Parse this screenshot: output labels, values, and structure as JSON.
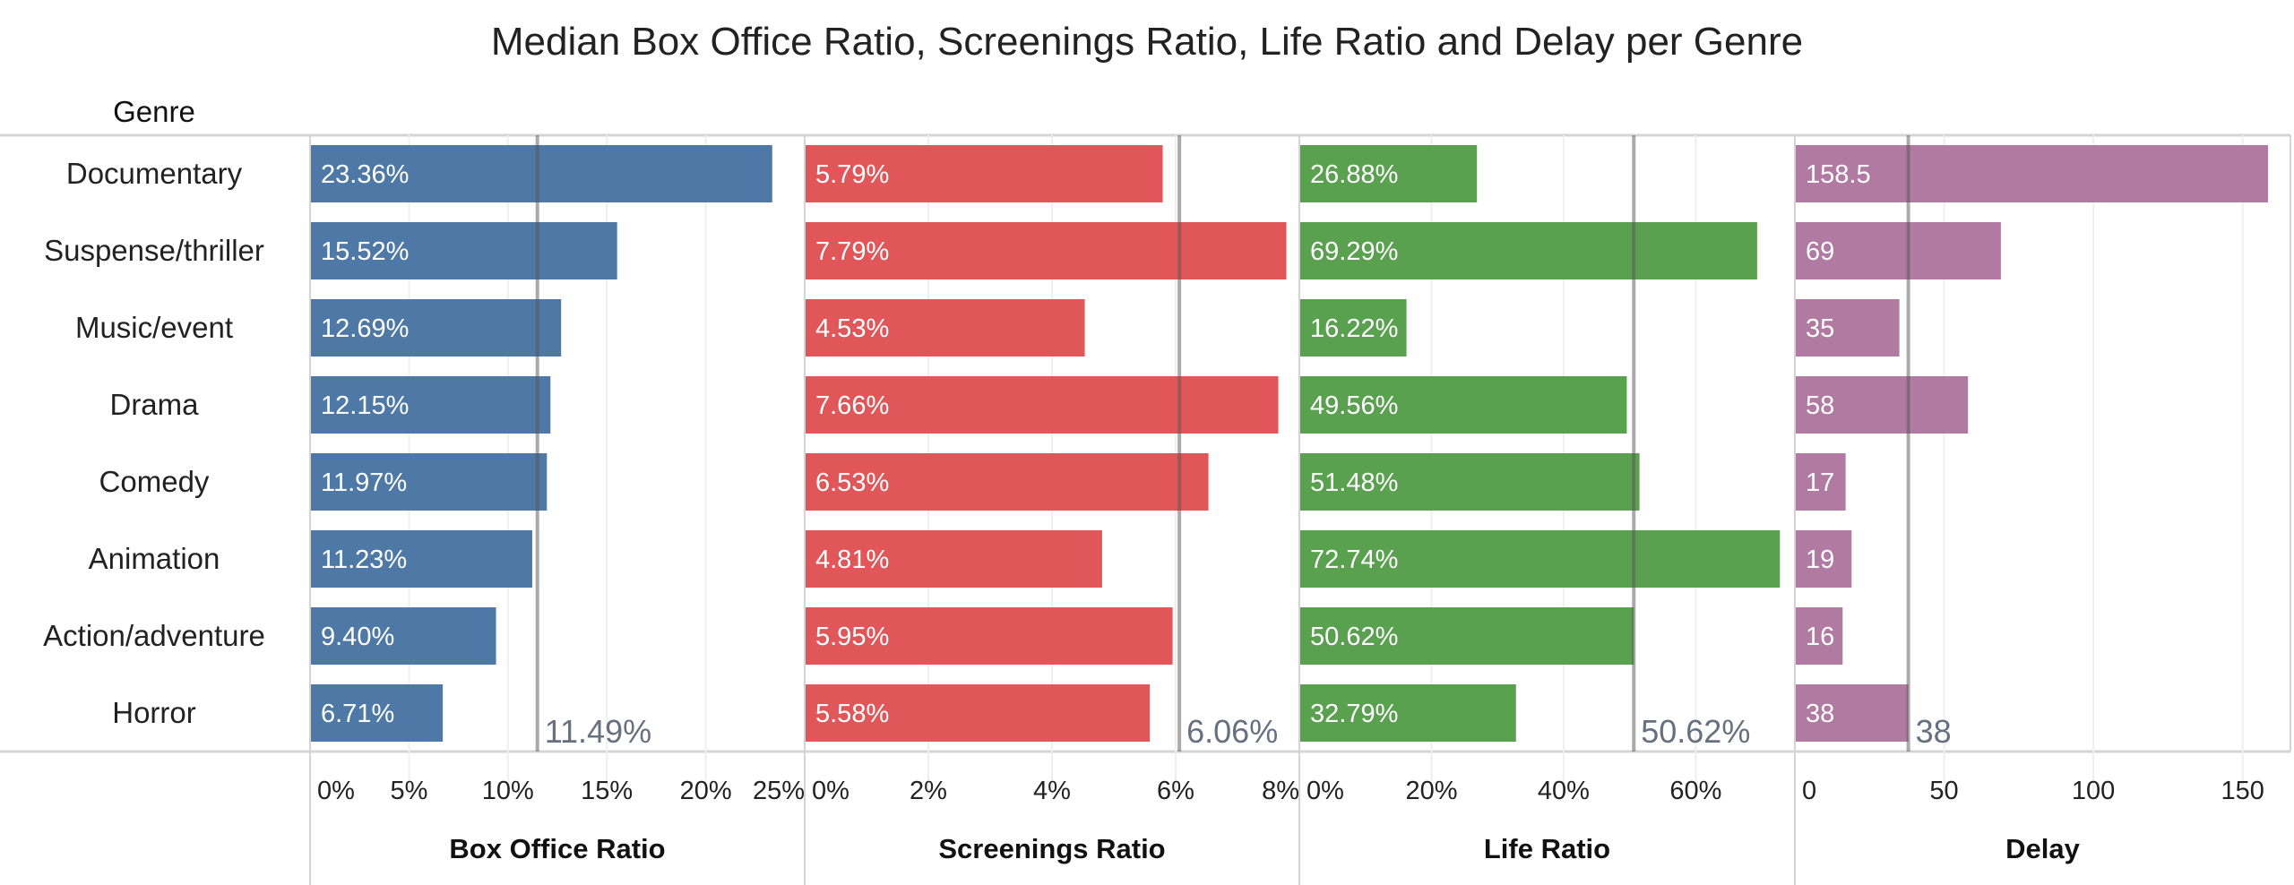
{
  "chart_data": {
    "type": "bar",
    "title": "Median Box Office Ratio, Screenings Ratio, Life Ratio and Delay per Genre",
    "row_header": "Genre",
    "categories": [
      "Documentary",
      "Suspense/thriller",
      "Music/event",
      "Drama",
      "Comedy",
      "Animation",
      "Action/adventure",
      "Horror"
    ],
    "panels": [
      {
        "name": "Box Office Ratio",
        "color": "#4e79a7",
        "unit": "%",
        "xlim": [
          0,
          25
        ],
        "ticks": [
          0,
          5,
          10,
          15,
          20,
          25
        ],
        "tick_labels": [
          "0%",
          "5%",
          "10%",
          "15%",
          "20%",
          "25%"
        ],
        "values": [
          23.36,
          15.52,
          12.69,
          12.15,
          11.97,
          11.23,
          9.4,
          6.71
        ],
        "labels": [
          "23.36%",
          "15.52%",
          "12.69%",
          "12.15%",
          "11.97%",
          "11.23%",
          "9.40%",
          "6.71%"
        ],
        "reference": 11.49,
        "reference_label": "11.49%"
      },
      {
        "name": "Screenings Ratio",
        "color": "#e15759",
        "unit": "%",
        "xlim": [
          0,
          8
        ],
        "ticks": [
          0,
          2,
          4,
          6,
          8
        ],
        "tick_labels": [
          "0%",
          "2%",
          "4%",
          "6%",
          "8%"
        ],
        "values": [
          5.79,
          7.79,
          4.53,
          7.66,
          6.53,
          4.81,
          5.95,
          5.58
        ],
        "labels": [
          "5.79%",
          "7.79%",
          "4.53%",
          "7.66%",
          "6.53%",
          "4.81%",
          "5.95%",
          "5.58%"
        ],
        "reference": 6.06,
        "reference_label": "6.06%"
      },
      {
        "name": "Life Ratio",
        "color": "#59a14f",
        "unit": "%",
        "xlim": [
          0,
          75
        ],
        "ticks": [
          0,
          20,
          40,
          60
        ],
        "tick_labels": [
          "0%",
          "20%",
          "40%",
          "60%"
        ],
        "values": [
          26.88,
          69.29,
          16.22,
          49.56,
          51.48,
          72.74,
          50.62,
          32.79
        ],
        "labels": [
          "26.88%",
          "69.29%",
          "16.22%",
          "49.56%",
          "51.48%",
          "72.74%",
          "50.62%",
          "32.79%"
        ],
        "reference": 50.62,
        "reference_label": "50.62%"
      },
      {
        "name": "Delay",
        "color": "#b07aa1",
        "unit": "",
        "xlim": [
          0,
          166
        ],
        "ticks": [
          0,
          50,
          100,
          150
        ],
        "tick_labels": [
          "0",
          "50",
          "100",
          "150"
        ],
        "values": [
          158.5,
          69,
          35,
          58,
          17,
          19,
          16,
          38
        ],
        "labels": [
          "158.5",
          "69",
          "35",
          "58",
          "17",
          "19",
          "16",
          "38"
        ],
        "reference": 38,
        "reference_label": "38"
      }
    ]
  }
}
